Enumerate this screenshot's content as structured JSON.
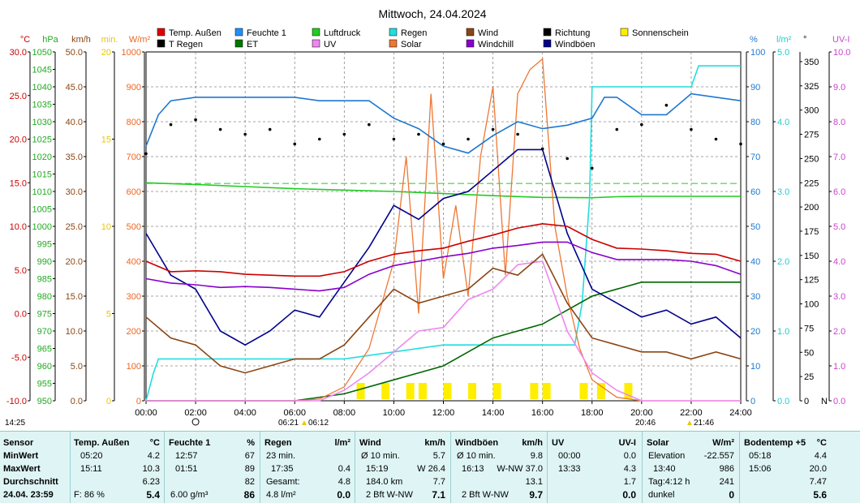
{
  "title": "Mittwoch, 24.04.2024",
  "colors": {
    "temp": "#cc0000",
    "feuchte": "#1e78d0",
    "luftdruck": "#22cc22",
    "regen": "#22dddd",
    "wind": "#8b4513",
    "richtung": "#000000",
    "sonnenschein": "#ffee00",
    "tregen": "#e8c800",
    "et": "#006600",
    "uv": "#ee88ee",
    "solar": "#ee7733",
    "windchill": "#8800cc",
    "windboeen": "#00008b"
  },
  "legend": [
    {
      "label": "Temp. Außen",
      "color": "#e00000"
    },
    {
      "label": "Feuchte 1",
      "color": "#1e90ff"
    },
    {
      "label": "Luftdruck",
      "color": "#22cc22"
    },
    {
      "label": "Regen",
      "color": "#22dddd"
    },
    {
      "label": "Wind",
      "color": "#8b4513"
    },
    {
      "label": "Richtung",
      "color": "#000000"
    },
    {
      "label": "Sonnenschein",
      "color": "#ffee00"
    },
    {
      "label": "T Regen",
      "color": "#000000"
    },
    {
      "label": "ET",
      "color": "#007700"
    },
    {
      "label": "UV",
      "color": "#ee88ee"
    },
    {
      "label": "Solar",
      "color": "#ee7733"
    },
    {
      "label": "Windchill",
      "color": "#8800cc"
    },
    {
      "label": "Windböen",
      "color": "#00008b"
    }
  ],
  "left_axes": [
    {
      "unit": "°C",
      "color": "#cc0000",
      "min": -10,
      "max": 30,
      "step": 5,
      "decimals": 1
    },
    {
      "unit": "hPa",
      "color": "#22aa22",
      "min": 950,
      "max": 1050,
      "step": 5,
      "decimals": 0
    },
    {
      "unit": "km/h",
      "color": "#8b4513",
      "min": 0,
      "max": 50,
      "step": 5,
      "decimals": 1
    },
    {
      "unit": "min.",
      "color": "#e8c800",
      "min": 0,
      "max": 20,
      "step": 5,
      "decimals": 0
    },
    {
      "unit": "W/m²",
      "color": "#ee6622",
      "min": 0,
      "max": 1000,
      "step": 100,
      "decimals": 0
    }
  ],
  "right_axes": [
    {
      "unit": "%",
      "color": "#1e78d0",
      "min": 0,
      "max": 100,
      "step": 10,
      "decimals": 0
    },
    {
      "unit": "l/m²",
      "color": "#22cccc",
      "min": 0,
      "max": 5,
      "step": 1,
      "decimals": 1
    },
    {
      "unit": "°",
      "color": "#000000",
      "min": 0,
      "max": 350,
      "step": 25,
      "decimals": 0,
      "zero_extra": "N"
    },
    {
      "unit": "UV-I",
      "color": "#cc44cc",
      "min": 0,
      "max": 10,
      "step": 1,
      "decimals": 1
    }
  ],
  "x_ticks": [
    "00:00",
    "02:00",
    "04:00",
    "06:00",
    "08:00",
    "10:00",
    "12:00",
    "14:00",
    "16:00",
    "18:00",
    "20:00",
    "22:00",
    "24:00"
  ],
  "sun_marks": {
    "sunrise": "06:21",
    "sunrise2": "06:12",
    "sunset": "20:46",
    "sunset2": "21:46",
    "moon": "14:25"
  },
  "chart_data": {
    "type": "line",
    "title": "Mittwoch, 24.04.2024",
    "x_range": [
      "00:00",
      "24:00"
    ],
    "grid": true,
    "legend_position": "top",
    "series": [
      {
        "name": "Temp. Außen",
        "unit": "°C",
        "x": [
          0,
          1,
          2,
          3,
          4,
          5,
          6,
          7,
          8,
          9,
          10,
          11,
          12,
          13,
          14,
          15,
          16,
          17,
          18,
          19,
          20,
          21,
          22,
          23,
          24
        ],
        "values": [
          6.0,
          4.8,
          4.9,
          4.8,
          4.5,
          4.4,
          4.3,
          4.3,
          4.8,
          6.0,
          6.8,
          7.2,
          7.5,
          8.3,
          9.0,
          9.8,
          10.3,
          10.0,
          8.5,
          7.5,
          7.4,
          7.2,
          6.9,
          6.8,
          6.0
        ]
      },
      {
        "name": "Windchill",
        "unit": "°C",
        "x": [
          0,
          1,
          2,
          3,
          4,
          5,
          6,
          7,
          8,
          9,
          10,
          11,
          12,
          13,
          14,
          15,
          16,
          17,
          18,
          19,
          20,
          21,
          22,
          23,
          24
        ],
        "values": [
          4.0,
          3.5,
          3.3,
          3.0,
          3.1,
          3.0,
          2.8,
          2.6,
          3.0,
          4.5,
          5.5,
          6.0,
          6.5,
          6.9,
          7.5,
          7.8,
          8.2,
          8.2,
          7.0,
          6.2,
          6.2,
          6.2,
          6.0,
          5.5,
          4.5
        ]
      },
      {
        "name": "Feuchte 1",
        "unit": "%",
        "x": [
          0,
          0.5,
          1,
          2,
          3,
          4,
          5,
          6,
          7,
          8,
          9,
          10,
          11,
          12,
          13,
          14,
          15,
          16,
          17,
          18,
          18.5,
          19,
          20,
          21,
          22,
          23,
          24
        ],
        "values": [
          73,
          82,
          86,
          87,
          87,
          87,
          87,
          87,
          86,
          86,
          86,
          81,
          78,
          73,
          71,
          76,
          80,
          78,
          79,
          81,
          87,
          87,
          82,
          82,
          88,
          87,
          86
        ]
      },
      {
        "name": "Luftdruck",
        "unit": "hPa",
        "x": [
          0,
          2,
          4,
          6,
          8,
          10,
          12,
          14,
          16,
          18,
          19,
          20,
          22,
          24
        ],
        "values": [
          1012.5,
          1012.0,
          1011.4,
          1010.8,
          1010.4,
          1010.0,
          1009.4,
          1008.8,
          1008.3,
          1008.2,
          1008.5,
          1008.6,
          1008.6,
          1008.6
        ]
      },
      {
        "name": "Regen",
        "unit": "l/m²",
        "x": [
          0,
          0.3,
          0.5,
          5,
          8,
          12,
          15,
          17.3,
          17.6,
          17.9,
          18,
          20,
          21,
          22,
          22.3,
          24
        ],
        "values": [
          0,
          0.4,
          0.6,
          0.6,
          0.6,
          0.8,
          0.8,
          0.8,
          1.4,
          2.9,
          4.5,
          4.5,
          4.5,
          4.5,
          4.8,
          4.8
        ]
      },
      {
        "name": "Wind",
        "unit": "km/h",
        "x": [
          0,
          1,
          2,
          3,
          4,
          5,
          6,
          7,
          8,
          9,
          10,
          11,
          12,
          13,
          14,
          15,
          16,
          17,
          18,
          19,
          20,
          21,
          22,
          23,
          24
        ],
        "values": [
          12,
          9,
          8,
          5,
          4,
          5,
          6,
          6,
          8,
          12,
          16,
          14,
          15,
          16,
          19,
          18,
          21,
          14,
          9,
          8,
          7,
          7,
          6,
          7,
          6
        ]
      },
      {
        "name": "Windböen",
        "unit": "km/h",
        "x": [
          0,
          1,
          2,
          3,
          4,
          5,
          6,
          7,
          8,
          9,
          10,
          11,
          12,
          13,
          14,
          15,
          16,
          17,
          18,
          19,
          20,
          21,
          22,
          23,
          24
        ],
        "values": [
          24,
          18,
          16,
          10,
          8,
          10,
          13,
          12,
          17,
          22,
          28,
          26,
          29,
          30,
          33,
          36,
          36,
          24,
          16,
          14,
          12,
          13,
          11,
          12,
          9
        ]
      },
      {
        "name": "Solar",
        "unit": "W/m²",
        "x": [
          0,
          6,
          7,
          8,
          9,
          10,
          10.5,
          11,
          11.5,
          12,
          12.5,
          13,
          13.5,
          14,
          14.5,
          15,
          15.5,
          16,
          16.5,
          17,
          17.5,
          18,
          19,
          20,
          24
        ],
        "values": [
          0,
          0,
          5,
          40,
          150,
          400,
          700,
          250,
          880,
          350,
          560,
          300,
          700,
          900,
          360,
          880,
          950,
          980,
          500,
          300,
          150,
          60,
          10,
          0,
          0
        ]
      },
      {
        "name": "UV",
        "unit": "UV-I",
        "x": [
          0,
          7,
          8,
          9,
          10,
          11,
          12,
          13,
          14,
          15,
          16,
          17,
          18,
          19,
          20,
          24
        ],
        "values": [
          0,
          0,
          0.3,
          0.8,
          1.4,
          2.0,
          2.1,
          2.9,
          3.2,
          3.9,
          4.0,
          2.0,
          0.8,
          0.3,
          0,
          0
        ]
      },
      {
        "name": "ET",
        "unit": "l/m²",
        "x": [
          0,
          6,
          8,
          10,
          11,
          12,
          13,
          14,
          16,
          17,
          18,
          20,
          24
        ],
        "values": [
          0,
          0,
          0.1,
          0.3,
          0.4,
          0.5,
          0.7,
          0.9,
          1.1,
          1.3,
          1.5,
          1.7,
          1.7
        ]
      },
      {
        "name": "Richtung",
        "unit": "°",
        "style": "scatter",
        "x": [
          0,
          1,
          2,
          3,
          4,
          5,
          6,
          7,
          8,
          9,
          10,
          11,
          12,
          13,
          14,
          15,
          16,
          17,
          18,
          19,
          20,
          21,
          22,
          23,
          24
        ],
        "values": [
          255,
          285,
          290,
          280,
          275,
          280,
          265,
          270,
          275,
          285,
          270,
          275,
          265,
          270,
          280,
          275,
          260,
          250,
          240,
          280,
          285,
          305,
          280,
          270,
          265
        ]
      },
      {
        "name": "Sonnenschein",
        "unit": "min.",
        "style": "bars",
        "x": [
          8.5,
          9.5,
          10.5,
          11,
          12,
          13,
          14,
          15.5,
          16,
          17.5,
          18.2,
          19.3
        ],
        "values": [
          1,
          1,
          1,
          1,
          1,
          1,
          1,
          1,
          1,
          1,
          1,
          1
        ]
      }
    ]
  },
  "stats": {
    "sensor": {
      "header": "Sensor",
      "rows": [
        "MinWert",
        "MaxWert",
        "Durchschnitt",
        "24.04. 23:59"
      ]
    },
    "temp": {
      "header": "Temp. Außen",
      "unit": "°C",
      "min_time": "05:20",
      "min": "4.2",
      "max_time": "15:11",
      "max": "10.3",
      "avg": "6.23",
      "cur_extra": "F: 86 %",
      "cur": "5.4"
    },
    "feuchte": {
      "header": "Feuchte 1",
      "unit": "%",
      "min_time": "12:57",
      "min": "67",
      "max_time": "01:51",
      "max": "89",
      "avg": "82",
      "cur_extra": "6.00 g/m³",
      "cur": "86"
    },
    "regen": {
      "header": "Regen",
      "unit": "l/m²",
      "r1a": "23 min.",
      "r2a": "17:35",
      "r2b": "0.4",
      "r3a": "Gesamt:",
      "r3b": "4.8",
      "r4a": "4.8 l/m²",
      "cur": "0.0"
    },
    "wind": {
      "header": "Wind",
      "unit": "km/h",
      "r1a": "Ø 10 min.",
      "r1b": "5.7",
      "r2a": "15:19",
      "r2b": "W 26.4",
      "r3a": "184.0 km",
      "r3b": "7.7",
      "r4a": "2 Bft W-NW",
      "cur": "7.1"
    },
    "boeen": {
      "header": "Windböen",
      "unit": "km/h",
      "r1a": "Ø 10 min.",
      "r1b": "9.8",
      "r2a": "16:13",
      "r2b": "W-NW 37.0",
      "r3b": "13.1",
      "r4a": "2 Bft W-NW",
      "cur": "9.7"
    },
    "uv": {
      "header": "UV",
      "unit": "UV-I",
      "min_time": "00:00",
      "min": "0.0",
      "max_time": "13:33",
      "max": "4.3",
      "avg": "1.7",
      "cur": "0.0"
    },
    "solar": {
      "header": "Solar",
      "unit": "W/m²",
      "r1a": "Elevation",
      "r1b": "-22.557",
      "r2a": "13:40",
      "r2b": "986",
      "r3a": "Tag:4:12 h",
      "r3b": "241",
      "r4a": "dunkel",
      "cur": "0"
    },
    "boden": {
      "header": "Bodentemp +5",
      "unit": "°C",
      "min_time": "05:18",
      "min": "4.4",
      "max_time": "15:06",
      "max": "20.0",
      "avg": "7.47",
      "cur": "5.6"
    }
  }
}
